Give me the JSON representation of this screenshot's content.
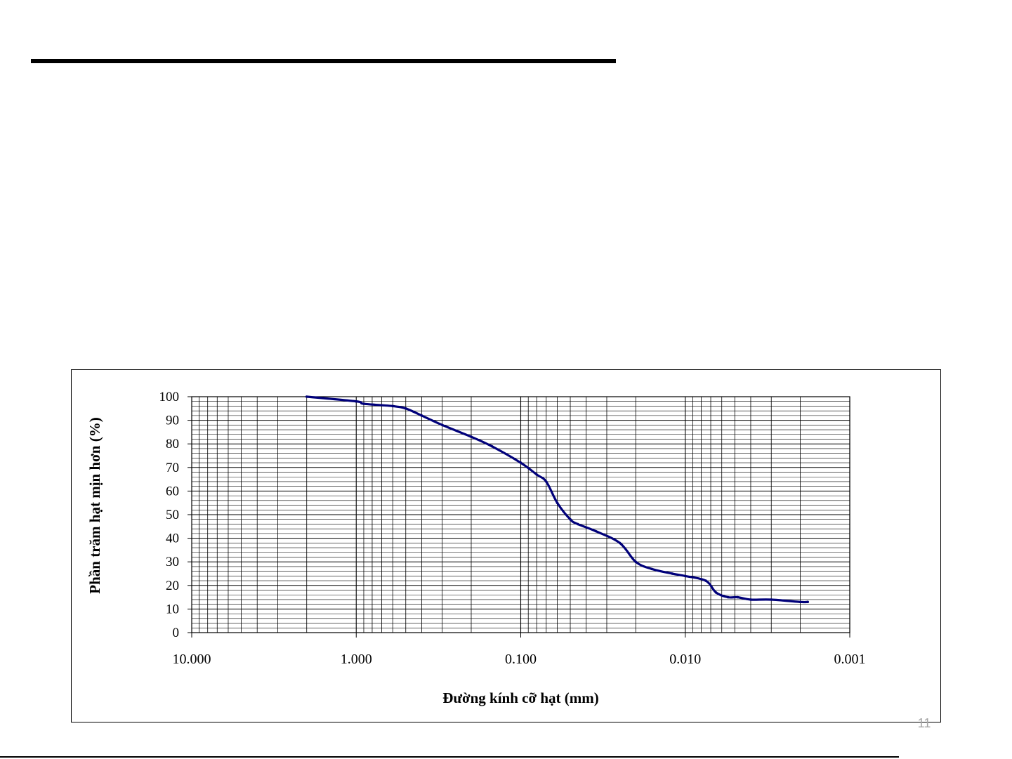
{
  "slide": {
    "page_number": "11"
  },
  "chart_data": {
    "type": "line",
    "title": "",
    "xlabel": "Đường kính cỡ hạt (mm)",
    "ylabel": "Phần trăm hạt mịn hơn (%)",
    "x_scale": "log",
    "x_reversed": true,
    "xlim": [
      10,
      0.001
    ],
    "ylim": [
      0,
      100
    ],
    "x_ticks": [
      10,
      1,
      0.1,
      0.01,
      0.001
    ],
    "x_tick_labels": [
      "10.000",
      "1.000",
      "0.100",
      "0.010",
      "0.001"
    ],
    "y_ticks": [
      0,
      10,
      20,
      30,
      40,
      50,
      60,
      70,
      80,
      90,
      100
    ],
    "y_tick_labels": [
      "0",
      "10",
      "20",
      "30",
      "40",
      "50",
      "60",
      "70",
      "80",
      "90",
      "100"
    ],
    "grid": true,
    "line_color": "#00007a",
    "series": [
      {
        "x": [
          2.0,
          1.0,
          0.9,
          0.6,
          0.5,
          0.4,
          0.3,
          0.2,
          0.15,
          0.1,
          0.08,
          0.07,
          0.06,
          0.05,
          0.045,
          0.035,
          0.025,
          0.02,
          0.016,
          0.012,
          0.01,
          0.0075,
          0.0065,
          0.0055,
          0.0048,
          0.004,
          0.003,
          0.002,
          0.0018
        ],
        "y": [
          100,
          98,
          97,
          96,
          95,
          92,
          88,
          83,
          79,
          72,
          67,
          64,
          55,
          48,
          46,
          43,
          38,
          30,
          27,
          25,
          24,
          22,
          17,
          15,
          15,
          14,
          14,
          13,
          13
        ]
      }
    ]
  }
}
